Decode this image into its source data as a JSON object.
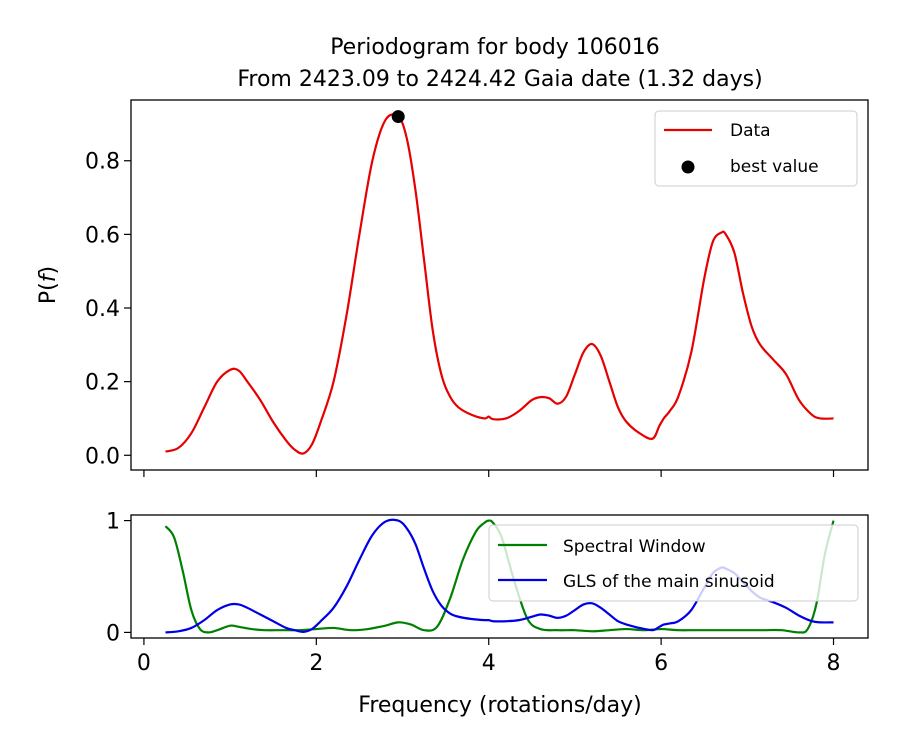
{
  "chart_data": [
    {
      "type": "line",
      "title": "Periodogram for body 106016",
      "subtitle": "From 2423.09 to 2424.42 Gaia date (1.32 days)",
      "xlabel": "",
      "ylabel": "P(f)",
      "ylabel_main": "P(",
      "ylabel_var": "f",
      "ylabel_close": ")",
      "xlim": [
        -0.15,
        8.4
      ],
      "ylim": [
        -0.04,
        0.965
      ],
      "xticks": [
        0,
        2,
        4,
        6,
        8
      ],
      "xtick_labels_visible": false,
      "yticks": [
        0.0,
        0.2,
        0.4,
        0.6,
        0.8
      ],
      "ytick_labels": [
        "0.0",
        "0.2",
        "0.4",
        "0.6",
        "0.8"
      ],
      "legend": {
        "placement": "top-right",
        "entries": [
          "Data",
          "best value"
        ]
      },
      "series": [
        {
          "name": "Data",
          "color": "#e60000",
          "kind": "line",
          "x": [
            0.25,
            0.4,
            0.55,
            0.7,
            0.85,
            1.0,
            1.1,
            1.2,
            1.35,
            1.5,
            1.65,
            1.75,
            1.85,
            1.95,
            2.05,
            2.2,
            2.35,
            2.5,
            2.65,
            2.8,
            2.95,
            3.05,
            3.15,
            3.25,
            3.35,
            3.45,
            3.55,
            3.65,
            3.8,
            3.95,
            4.0,
            4.05,
            4.2,
            4.35,
            4.5,
            4.6,
            4.7,
            4.8,
            4.9,
            5.0,
            5.1,
            5.2,
            5.3,
            5.4,
            5.5,
            5.6,
            5.75,
            5.9,
            5.98,
            6.03,
            6.1,
            6.2,
            6.35,
            6.5,
            6.6,
            6.7,
            6.75,
            6.85,
            6.95,
            7.05,
            7.15,
            7.3,
            7.45,
            7.6,
            7.75,
            7.85,
            8.0
          ],
          "y": [
            0.01,
            0.02,
            0.06,
            0.13,
            0.2,
            0.232,
            0.23,
            0.2,
            0.15,
            0.09,
            0.04,
            0.015,
            0.005,
            0.03,
            0.09,
            0.2,
            0.38,
            0.6,
            0.8,
            0.91,
            0.92,
            0.86,
            0.72,
            0.53,
            0.34,
            0.22,
            0.16,
            0.13,
            0.11,
            0.1,
            0.105,
            0.098,
            0.1,
            0.12,
            0.15,
            0.158,
            0.155,
            0.14,
            0.16,
            0.22,
            0.28,
            0.302,
            0.27,
            0.2,
            0.13,
            0.09,
            0.06,
            0.045,
            0.08,
            0.1,
            0.12,
            0.16,
            0.28,
            0.48,
            0.58,
            0.605,
            0.6,
            0.55,
            0.44,
            0.35,
            0.3,
            0.26,
            0.22,
            0.15,
            0.11,
            0.1,
            0.1
          ]
        },
        {
          "name": "best value",
          "color": "#000000",
          "kind": "point",
          "x": [
            2.95
          ],
          "y": [
            0.92
          ]
        }
      ]
    },
    {
      "type": "line",
      "title": "",
      "xlabel": "Frequency (rotations/day)",
      "ylabel": "",
      "xlim": [
        -0.15,
        8.4
      ],
      "ylim": [
        -0.05,
        1.05
      ],
      "xticks": [
        0,
        2,
        4,
        6,
        8
      ],
      "xtick_labels": [
        "0",
        "2",
        "4",
        "6",
        "8"
      ],
      "yticks": [
        0,
        1
      ],
      "ytick_labels": [
        "0",
        "1"
      ],
      "legend": {
        "placement": "top-right",
        "entries": [
          "Spectral Window",
          "GLS of the main sinusoid"
        ]
      },
      "series": [
        {
          "name": "Spectral Window",
          "color": "#008000",
          "kind": "line",
          "x": [
            0.25,
            0.35,
            0.45,
            0.55,
            0.65,
            0.75,
            0.85,
            1.0,
            1.1,
            1.25,
            1.4,
            1.6,
            1.8,
            2.0,
            2.2,
            2.4,
            2.6,
            2.8,
            2.95,
            3.1,
            3.25,
            3.4,
            3.55,
            3.7,
            3.85,
            3.95,
            4.0,
            4.05,
            4.15,
            4.3,
            4.45,
            4.6,
            4.8,
            5.0,
            5.2,
            5.4,
            5.6,
            5.8,
            6.0,
            6.2,
            6.4,
            6.6,
            6.8,
            7.0,
            7.2,
            7.4,
            7.6,
            7.7,
            7.8,
            7.9,
            8.0
          ],
          "y": [
            0.95,
            0.85,
            0.55,
            0.2,
            0.03,
            0.0,
            0.02,
            0.06,
            0.05,
            0.03,
            0.02,
            0.02,
            0.02,
            0.03,
            0.04,
            0.02,
            0.03,
            0.06,
            0.09,
            0.07,
            0.02,
            0.05,
            0.3,
            0.65,
            0.9,
            0.98,
            1.0,
            0.98,
            0.85,
            0.45,
            0.12,
            0.03,
            0.02,
            0.02,
            0.01,
            0.02,
            0.03,
            0.02,
            0.03,
            0.02,
            0.02,
            0.02,
            0.02,
            0.02,
            0.02,
            0.02,
            0.0,
            0.03,
            0.25,
            0.7,
            1.0
          ]
        },
        {
          "name": "GLS of the main sinusoid",
          "color": "#0000e6",
          "kind": "line",
          "x": [
            0.25,
            0.4,
            0.55,
            0.7,
            0.85,
            1.0,
            1.1,
            1.2,
            1.35,
            1.5,
            1.65,
            1.75,
            1.85,
            1.95,
            2.05,
            2.2,
            2.35,
            2.5,
            2.65,
            2.8,
            2.95,
            3.05,
            3.15,
            3.25,
            3.35,
            3.45,
            3.55,
            3.65,
            3.8,
            3.95,
            4.0,
            4.05,
            4.2,
            4.35,
            4.5,
            4.6,
            4.7,
            4.8,
            4.9,
            5.0,
            5.1,
            5.2,
            5.3,
            5.4,
            5.5,
            5.6,
            5.75,
            5.9,
            5.98,
            6.03,
            6.1,
            6.2,
            6.35,
            6.5,
            6.6,
            6.7,
            6.75,
            6.85,
            6.95,
            7.05,
            7.15,
            7.3,
            7.45,
            7.6,
            7.75,
            7.85,
            8.0
          ],
          "y": [
            0.0,
            0.01,
            0.04,
            0.11,
            0.2,
            0.25,
            0.25,
            0.22,
            0.16,
            0.1,
            0.04,
            0.02,
            0.005,
            0.03,
            0.1,
            0.22,
            0.41,
            0.65,
            0.87,
            0.99,
            1.0,
            0.93,
            0.79,
            0.57,
            0.37,
            0.24,
            0.17,
            0.14,
            0.12,
            0.11,
            0.11,
            0.1,
            0.1,
            0.11,
            0.14,
            0.16,
            0.15,
            0.13,
            0.15,
            0.2,
            0.25,
            0.26,
            0.22,
            0.16,
            0.1,
            0.07,
            0.04,
            0.02,
            0.05,
            0.07,
            0.08,
            0.1,
            0.2,
            0.4,
            0.53,
            0.58,
            0.57,
            0.53,
            0.45,
            0.37,
            0.31,
            0.27,
            0.22,
            0.15,
            0.1,
            0.09,
            0.09
          ]
        }
      ]
    }
  ]
}
